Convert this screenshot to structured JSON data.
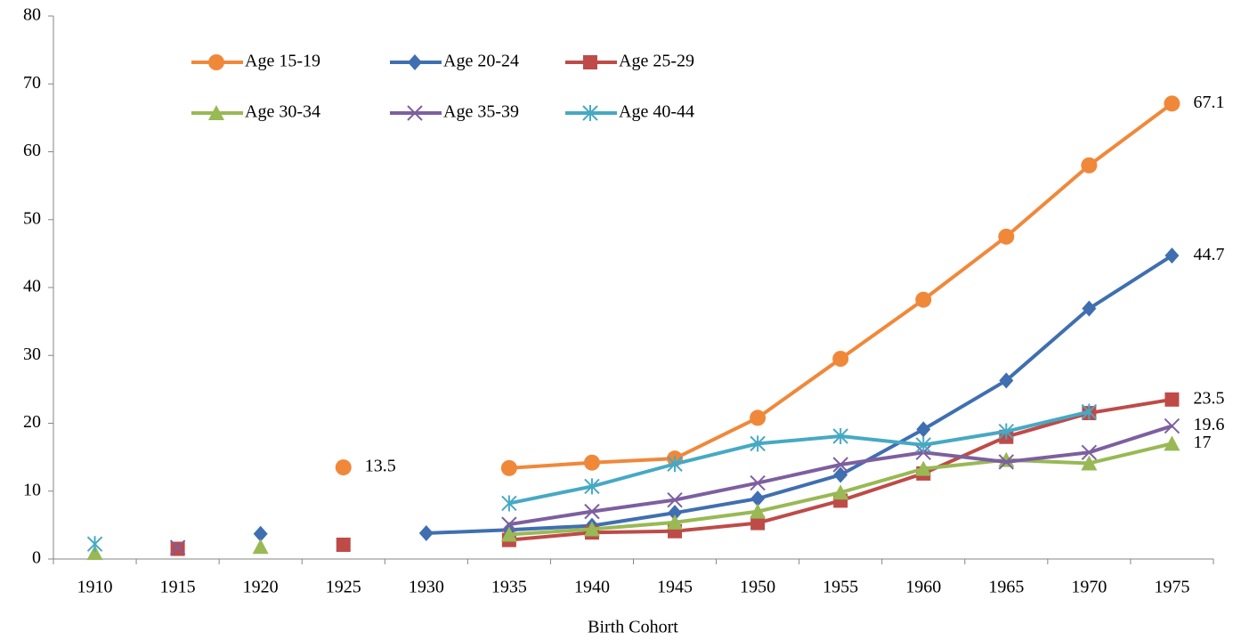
{
  "chart_data": {
    "type": "line",
    "x_label": "Birth Cohort",
    "categories": [
      "1910",
      "1915",
      "1920",
      "1925",
      "1930",
      "1935",
      "1940",
      "1945",
      "1950",
      "1955",
      "1960",
      "1965",
      "1970",
      "1975"
    ],
    "ylim": [
      0,
      80
    ],
    "yticks": [
      0,
      10,
      20,
      30,
      40,
      50,
      60,
      70,
      80
    ],
    "series": [
      {
        "name": "Age 15-19",
        "color": "#F0883A",
        "marker": "circle",
        "values": [
          null,
          null,
          null,
          13.5,
          null,
          13.4,
          14.2,
          14.8,
          20.8,
          29.5,
          38.2,
          47.5,
          58,
          67.1
        ],
        "value_labels": [
          null,
          null,
          null,
          "13.5",
          null,
          null,
          null,
          null,
          null,
          null,
          null,
          null,
          null,
          "67.1"
        ]
      },
      {
        "name": "Age 20-24",
        "color": "#3F6FB0",
        "marker": "diamond",
        "values": [
          null,
          null,
          3.7,
          null,
          3.8,
          4.3,
          4.9,
          6.8,
          8.9,
          12.4,
          19.1,
          26.3,
          36.9,
          44.7
        ],
        "value_labels": [
          null,
          null,
          null,
          null,
          null,
          null,
          null,
          null,
          null,
          null,
          null,
          null,
          null,
          "44.7"
        ]
      },
      {
        "name": "Age 25-29",
        "color": "#BE4B48",
        "marker": "square",
        "values": [
          null,
          1.5,
          null,
          2.1,
          null,
          2.8,
          3.9,
          4.1,
          5.3,
          8.6,
          12.6,
          18.0,
          21.5,
          23.5
        ],
        "value_labels": [
          null,
          null,
          null,
          null,
          null,
          null,
          null,
          null,
          null,
          null,
          null,
          null,
          null,
          "23.5"
        ]
      },
      {
        "name": "Age 30-34",
        "color": "#98B954",
        "marker": "triangle",
        "values": [
          0.9,
          null,
          1.8,
          null,
          null,
          3.6,
          4.4,
          5.4,
          7.0,
          9.8,
          13.3,
          14.6,
          14.1,
          17
        ],
        "value_labels": [
          null,
          null,
          null,
          null,
          null,
          null,
          null,
          null,
          null,
          null,
          null,
          null,
          null,
          "17"
        ]
      },
      {
        "name": "Age 35-39",
        "color": "#7D5FA0",
        "marker": "x",
        "values": [
          null,
          1.7,
          null,
          null,
          null,
          5.1,
          7.0,
          8.7,
          11.2,
          13.9,
          15.7,
          14.3,
          15.7,
          19.6
        ],
        "value_labels": [
          null,
          null,
          null,
          null,
          null,
          null,
          null,
          null,
          null,
          null,
          null,
          null,
          null,
          "19.6"
        ]
      },
      {
        "name": "Age 40-44",
        "color": "#46A9C4",
        "marker": "asterisk",
        "values": [
          2.2,
          null,
          null,
          null,
          null,
          8.2,
          10.7,
          14.0,
          17.0,
          18.1,
          16.8,
          18.8,
          21.7,
          null
        ],
        "value_labels": [
          null,
          null,
          null,
          null,
          null,
          null,
          null,
          null,
          null,
          null,
          null,
          null,
          null,
          null
        ]
      }
    ]
  }
}
